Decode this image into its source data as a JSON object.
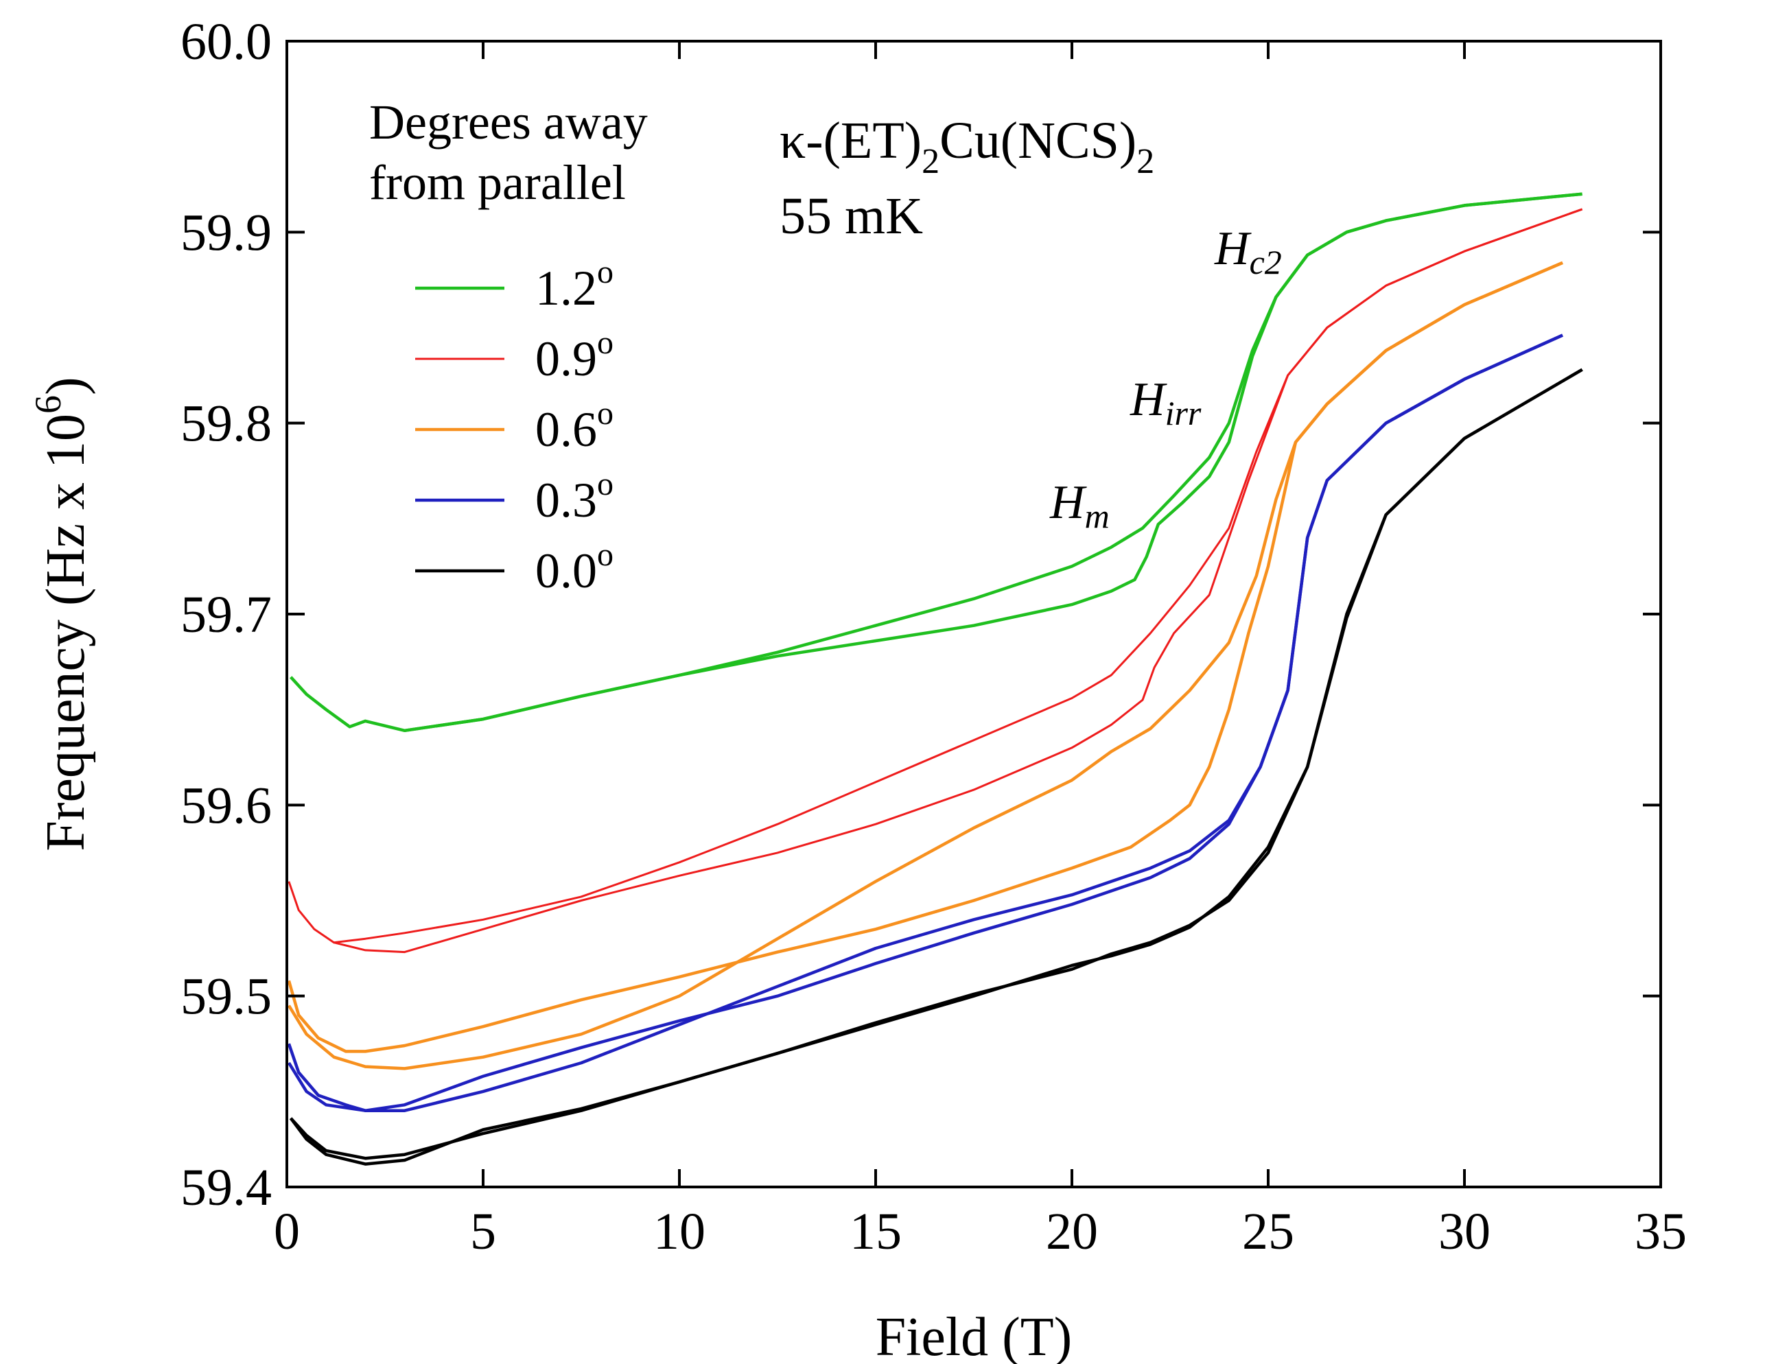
{
  "chart_data": {
    "type": "line",
    "title": "",
    "xlabel": "Field (T)",
    "ylabel": "Frequency (Hz x 10",
    "ylabel_sup": "6",
    "ylabel_close": ")",
    "xlim": [
      0,
      35
    ],
    "ylim": [
      59.4,
      60.0
    ],
    "xticks": [
      0,
      5,
      10,
      15,
      20,
      25,
      30,
      35
    ],
    "yticks": [
      59.4,
      59.5,
      59.6,
      59.7,
      59.8,
      59.9,
      60.0
    ],
    "xtick_labels": [
      "0",
      "5",
      "10",
      "15",
      "20",
      "25",
      "30",
      "35"
    ],
    "ytick_labels": [
      "59.4",
      "59.5",
      "59.6",
      "59.7",
      "59.8",
      "59.9",
      "60.0"
    ],
    "grid": false,
    "legend": {
      "title_line1": "Degrees away",
      "title_line2": "from parallel",
      "placement": "top-left"
    },
    "annotations": {
      "compound_kappa": "κ-(ET)",
      "compound_sub1": "2",
      "compound_mid": "Cu(NCS)",
      "compound_sub2": "2",
      "temperature": "55 mK",
      "hm_main": "H",
      "hm_sub": "m",
      "hirr_main": "H",
      "hirr_sub": "irr",
      "hc2_main": "H",
      "hc2_sub": "c2"
    },
    "series": [
      {
        "name": "1.2",
        "degree_sup": "o",
        "color": "#1fbf1f",
        "branches": [
          [
            [
              0.1,
              59.667
            ],
            [
              0.5,
              59.658
            ],
            [
              1.0,
              59.65
            ],
            [
              1.6,
              59.641
            ],
            [
              2.0,
              59.644
            ],
            [
              3.0,
              59.639
            ],
            [
              5.0,
              59.645
            ],
            [
              7.5,
              59.657
            ],
            [
              10.0,
              59.668
            ],
            [
              12.5,
              59.68
            ],
            [
              15.0,
              59.694
            ],
            [
              17.5,
              59.708
            ],
            [
              20.0,
              59.725
            ],
            [
              21.0,
              59.735
            ],
            [
              21.8,
              59.745
            ],
            [
              22.6,
              59.762
            ],
            [
              23.5,
              59.782
            ],
            [
              24.0,
              59.8
            ],
            [
              24.6,
              59.838
            ],
            [
              25.2,
              59.866
            ],
            [
              26.0,
              59.888
            ],
            [
              27.0,
              59.9
            ],
            [
              28.0,
              59.906
            ],
            [
              30.0,
              59.914
            ],
            [
              33.0,
              59.92
            ]
          ],
          [
            [
              3.0,
              59.639
            ],
            [
              5.0,
              59.645
            ],
            [
              7.5,
              59.657
            ],
            [
              10.0,
              59.668
            ],
            [
              12.5,
              59.678
            ],
            [
              15.0,
              59.686
            ],
            [
              17.5,
              59.694
            ],
            [
              20.0,
              59.705
            ],
            [
              21.0,
              59.712
            ],
            [
              21.6,
              59.718
            ],
            [
              21.9,
              59.73
            ],
            [
              22.2,
              59.747
            ],
            [
              22.8,
              59.758
            ],
            [
              23.5,
              59.772
            ],
            [
              24.0,
              59.79
            ],
            [
              24.6,
              59.835
            ],
            [
              25.2,
              59.866
            ],
            [
              26.0,
              59.888
            ],
            [
              27.0,
              59.9
            ],
            [
              28.0,
              59.906
            ],
            [
              30.0,
              59.914
            ],
            [
              33.0,
              59.92
            ]
          ]
        ]
      },
      {
        "name": "0.9",
        "degree_sup": "o",
        "color": "#ee1c1c",
        "branches": [
          [
            [
              0.05,
              59.56
            ],
            [
              0.3,
              59.545
            ],
            [
              0.7,
              59.535
            ],
            [
              1.2,
              59.528
            ],
            [
              2.0,
              59.53
            ],
            [
              3.0,
              59.533
            ],
            [
              5.0,
              59.54
            ],
            [
              7.5,
              59.552
            ],
            [
              10.0,
              59.57
            ],
            [
              12.5,
              59.59
            ],
            [
              15.0,
              59.612
            ],
            [
              17.5,
              59.634
            ],
            [
              20.0,
              59.656
            ],
            [
              21.0,
              59.668
            ],
            [
              22.0,
              59.69
            ],
            [
              23.0,
              59.715
            ],
            [
              24.0,
              59.745
            ],
            [
              24.7,
              59.785
            ],
            [
              25.5,
              59.825
            ],
            [
              26.5,
              59.85
            ],
            [
              28.0,
              59.872
            ],
            [
              30.0,
              59.89
            ],
            [
              33.0,
              59.912
            ]
          ],
          [
            [
              1.2,
              59.528
            ],
            [
              2.0,
              59.524
            ],
            [
              3.0,
              59.523
            ],
            [
              5.0,
              59.535
            ],
            [
              7.5,
              59.55
            ],
            [
              10.0,
              59.563
            ],
            [
              12.5,
              59.575
            ],
            [
              15.0,
              59.59
            ],
            [
              17.5,
              59.608
            ],
            [
              20.0,
              59.63
            ],
            [
              21.0,
              59.642
            ],
            [
              21.8,
              59.655
            ],
            [
              22.1,
              59.672
            ],
            [
              22.6,
              59.69
            ],
            [
              23.5,
              59.71
            ],
            [
              24.5,
              59.77
            ],
            [
              25.5,
              59.825
            ],
            [
              26.5,
              59.85
            ],
            [
              28.0,
              59.872
            ],
            [
              30.0,
              59.89
            ],
            [
              33.0,
              59.912
            ]
          ]
        ]
      },
      {
        "name": "0.6",
        "degree_sup": "o",
        "color": "#f7901e",
        "branches": [
          [
            [
              0.05,
              59.508
            ],
            [
              0.3,
              59.49
            ],
            [
              0.8,
              59.478
            ],
            [
              1.5,
              59.471
            ],
            [
              2.0,
              59.471
            ],
            [
              3.0,
              59.474
            ],
            [
              5.0,
              59.484
            ],
            [
              7.5,
              59.498
            ],
            [
              10.0,
              59.51
            ],
            [
              12.5,
              59.523
            ],
            [
              15.0,
              59.535
            ],
            [
              17.5,
              59.55
            ],
            [
              20.0,
              59.567
            ],
            [
              21.5,
              59.578
            ],
            [
              22.5,
              59.592
            ],
            [
              23.0,
              59.6
            ],
            [
              23.5,
              59.62
            ],
            [
              24.0,
              59.65
            ],
            [
              24.5,
              59.69
            ],
            [
              25.0,
              59.725
            ],
            [
              25.7,
              59.79
            ],
            [
              26.5,
              59.81
            ],
            [
              28.0,
              59.838
            ],
            [
              30.0,
              59.862
            ],
            [
              32.5,
              59.884
            ]
          ],
          [
            [
              0.05,
              59.495
            ],
            [
              0.5,
              59.48
            ],
            [
              1.2,
              59.468
            ],
            [
              2.0,
              59.463
            ],
            [
              3.0,
              59.462
            ],
            [
              5.0,
              59.468
            ],
            [
              7.5,
              59.48
            ],
            [
              10.0,
              59.5
            ],
            [
              12.5,
              59.53
            ],
            [
              15.0,
              59.56
            ],
            [
              17.5,
              59.588
            ],
            [
              20.0,
              59.613
            ],
            [
              21.0,
              59.628
            ],
            [
              22.0,
              59.64
            ],
            [
              23.0,
              59.66
            ],
            [
              24.0,
              59.685
            ],
            [
              24.7,
              59.72
            ],
            [
              25.2,
              59.76
            ],
            [
              25.7,
              59.79
            ],
            [
              26.5,
              59.81
            ],
            [
              28.0,
              59.838
            ],
            [
              30.0,
              59.862
            ],
            [
              32.5,
              59.884
            ]
          ]
        ]
      },
      {
        "name": "0.3",
        "degree_sup": "o",
        "color": "#1f20bf",
        "branches": [
          [
            [
              0.05,
              59.475
            ],
            [
              0.3,
              59.46
            ],
            [
              0.8,
              59.448
            ],
            [
              1.5,
              59.443
            ],
            [
              2.0,
              59.44
            ],
            [
              3.0,
              59.443
            ],
            [
              5.0,
              59.458
            ],
            [
              7.5,
              59.473
            ],
            [
              10.0,
              59.487
            ],
            [
              12.5,
              59.5
            ],
            [
              15.0,
              59.517
            ],
            [
              17.5,
              59.533
            ],
            [
              20.0,
              59.548
            ],
            [
              22.0,
              59.562
            ],
            [
              23.0,
              59.572
            ],
            [
              24.0,
              59.59
            ],
            [
              24.8,
              59.62
            ],
            [
              25.5,
              59.66
            ],
            [
              26.0,
              59.74
            ],
            [
              26.5,
              59.77
            ],
            [
              28.0,
              59.8
            ],
            [
              30.0,
              59.823
            ],
            [
              32.5,
              59.846
            ]
          ],
          [
            [
              0.05,
              59.465
            ],
            [
              0.5,
              59.45
            ],
            [
              1.0,
              59.443
            ],
            [
              2.0,
              59.44
            ],
            [
              3.0,
              59.44
            ],
            [
              5.0,
              59.45
            ],
            [
              7.5,
              59.465
            ],
            [
              10.0,
              59.485
            ],
            [
              12.5,
              59.505
            ],
            [
              15.0,
              59.525
            ],
            [
              17.5,
              59.54
            ],
            [
              20.0,
              59.553
            ],
            [
              22.0,
              59.567
            ],
            [
              23.0,
              59.576
            ],
            [
              24.0,
              59.592
            ],
            [
              24.8,
              59.62
            ],
            [
              25.5,
              59.66
            ],
            [
              26.0,
              59.74
            ],
            [
              26.5,
              59.77
            ],
            [
              28.0,
              59.8
            ],
            [
              30.0,
              59.823
            ],
            [
              32.5,
              59.846
            ]
          ]
        ]
      },
      {
        "name": "0.0",
        "degree_sup": "o",
        "color": "#000000",
        "branches": [
          [
            [
              0.1,
              59.436
            ],
            [
              0.5,
              59.427
            ],
            [
              1.0,
              59.419
            ],
            [
              2.0,
              59.415
            ],
            [
              3.0,
              59.417
            ],
            [
              5.0,
              59.428
            ],
            [
              7.5,
              59.44
            ],
            [
              10.0,
              59.455
            ],
            [
              12.5,
              59.47
            ],
            [
              15.0,
              59.485
            ],
            [
              17.5,
              59.5
            ],
            [
              20.0,
              59.516
            ],
            [
              21.0,
              59.521
            ],
            [
              22.0,
              59.527
            ],
            [
              23.0,
              59.536
            ],
            [
              24.0,
              59.552
            ],
            [
              25.0,
              59.578
            ],
            [
              26.0,
              59.62
            ],
            [
              27.0,
              59.698
            ],
            [
              28.0,
              59.752
            ],
            [
              30.0,
              59.792
            ],
            [
              33.0,
              59.828
            ]
          ],
          [
            [
              0.1,
              59.436
            ],
            [
              0.5,
              59.425
            ],
            [
              1.0,
              59.417
            ],
            [
              2.0,
              59.412
            ],
            [
              3.0,
              59.414
            ],
            [
              5.0,
              59.43
            ],
            [
              7.5,
              59.441
            ],
            [
              10.0,
              59.455
            ],
            [
              12.5,
              59.47
            ],
            [
              15.0,
              59.486
            ],
            [
              17.5,
              59.501
            ],
            [
              20.0,
              59.514
            ],
            [
              21.0,
              59.522
            ],
            [
              22.0,
              59.528
            ],
            [
              23.0,
              59.537
            ],
            [
              24.0,
              59.55
            ],
            [
              25.0,
              59.575
            ],
            [
              26.0,
              59.62
            ],
            [
              27.0,
              59.7
            ],
            [
              28.0,
              59.752
            ],
            [
              30.0,
              59.792
            ],
            [
              33.0,
              59.828
            ]
          ]
        ]
      }
    ]
  }
}
